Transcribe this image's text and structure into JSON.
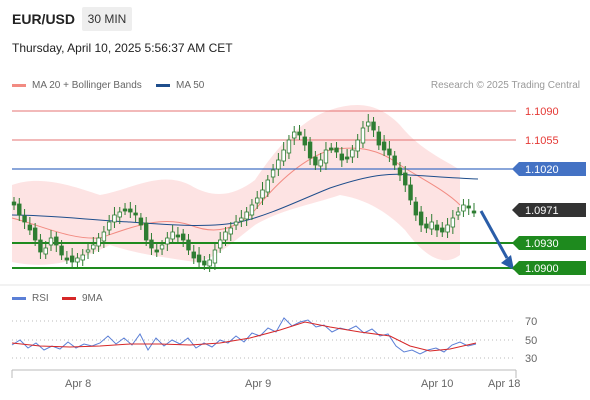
{
  "header": {
    "symbol": "EUR/USD",
    "interval": "30 MIN",
    "timestamp": "Thursday, April 10, 2025 5:56:37 AM CET"
  },
  "legend": {
    "ma20_label": "MA 20 + Bollinger Bands",
    "ma50_label": "MA 50",
    "research": "Research © 2025 Trading Central",
    "colors": {
      "ma20": "#f28b82",
      "ma50": "#1f4e8c",
      "bands": "#fde0e0"
    }
  },
  "levels": {
    "r2": "1.1090",
    "r1": "1.1055",
    "pivot": "1.1020",
    "last": "1.0971",
    "s1": "1.0930",
    "s2": "1.0900",
    "colors": {
      "resistance": "#e53935",
      "pivot": "#4472c4",
      "last": "#333333",
      "support": "#1e8a1e"
    }
  },
  "rsi_legend": {
    "rsi_label": "RSI",
    "ma_label": "9MA",
    "colors": {
      "rsi": "#5b7fd6",
      "ma": "#d62728"
    }
  },
  "rsi_axis": [
    "70",
    "50",
    "30"
  ],
  "x_axis": [
    "Apr 8",
    "Apr 9",
    "Apr 10",
    "Apr 18"
  ]
}
